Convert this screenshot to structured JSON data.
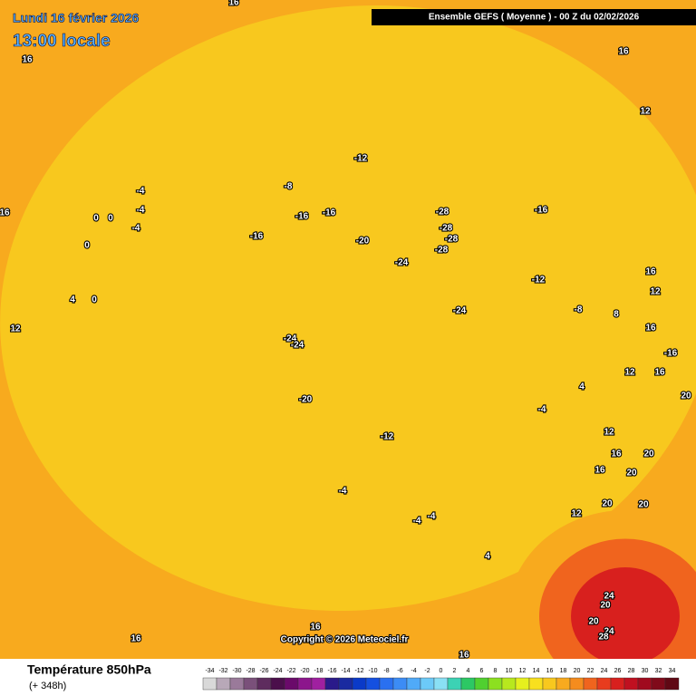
{
  "header": {
    "date": "Lundi 16 février 2026",
    "time": "13:00 locale",
    "model": "Ensemble GEFS  ( Moyenne )  -  00 Z du 02/02/2026"
  },
  "map": {
    "contour_labels": [
      16,
      16,
      16,
      12,
      -12,
      -8,
      -4,
      -4,
      0,
      0,
      -4,
      -16,
      -16,
      -16,
      -20,
      -28,
      -28,
      -28,
      -28,
      -24,
      -16,
      -12,
      -8,
      8,
      -24,
      -24,
      -24,
      -20,
      0,
      4,
      0,
      12,
      16,
      16,
      12,
      16,
      -16,
      12,
      16,
      20,
      4,
      -4,
      -12,
      12,
      16,
      20,
      20,
      16,
      20,
      20,
      12,
      -4,
      -4,
      -4,
      4,
      24,
      20,
      20,
      24,
      28,
      16,
      16,
      16
    ],
    "copyright": "Copyright © 2026 Meteociel.fr"
  },
  "footer": {
    "title": "Température 850hPa",
    "lead": "(+ 348h)"
  },
  "legend": {
    "ticks": [
      -34,
      -32,
      -30,
      -28,
      -26,
      -24,
      -22,
      -20,
      -18,
      -16,
      -14,
      -12,
      -10,
      -8,
      -6,
      -4,
      -2,
      0,
      2,
      4,
      6,
      8,
      10,
      12,
      14,
      16,
      18,
      20,
      22,
      24,
      26,
      28,
      30,
      32,
      34
    ],
    "colors": [
      "#d9d9d9",
      "#b8a8b8",
      "#9a7a9a",
      "#7a507a",
      "#5e2c5e",
      "#4b0f4b",
      "#6a0a6a",
      "#8c168c",
      "#a020a0",
      "#2a1a8a",
      "#1a2aa0",
      "#0a3ac8",
      "#1450e0",
      "#2a70f0",
      "#3c8cf5",
      "#50aaf8",
      "#6ccaf8",
      "#8ae0f5",
      "#3cd2b4",
      "#2cc864",
      "#50d030",
      "#8ce020",
      "#b8e81e",
      "#e6f01e",
      "#f8e01e",
      "#f8c81e",
      "#f8aa1e",
      "#f58c1e",
      "#f0641e",
      "#e83c1e",
      "#d8201e",
      "#c01020",
      "#a00a1e",
      "#800a1a",
      "#600814"
    ]
  }
}
